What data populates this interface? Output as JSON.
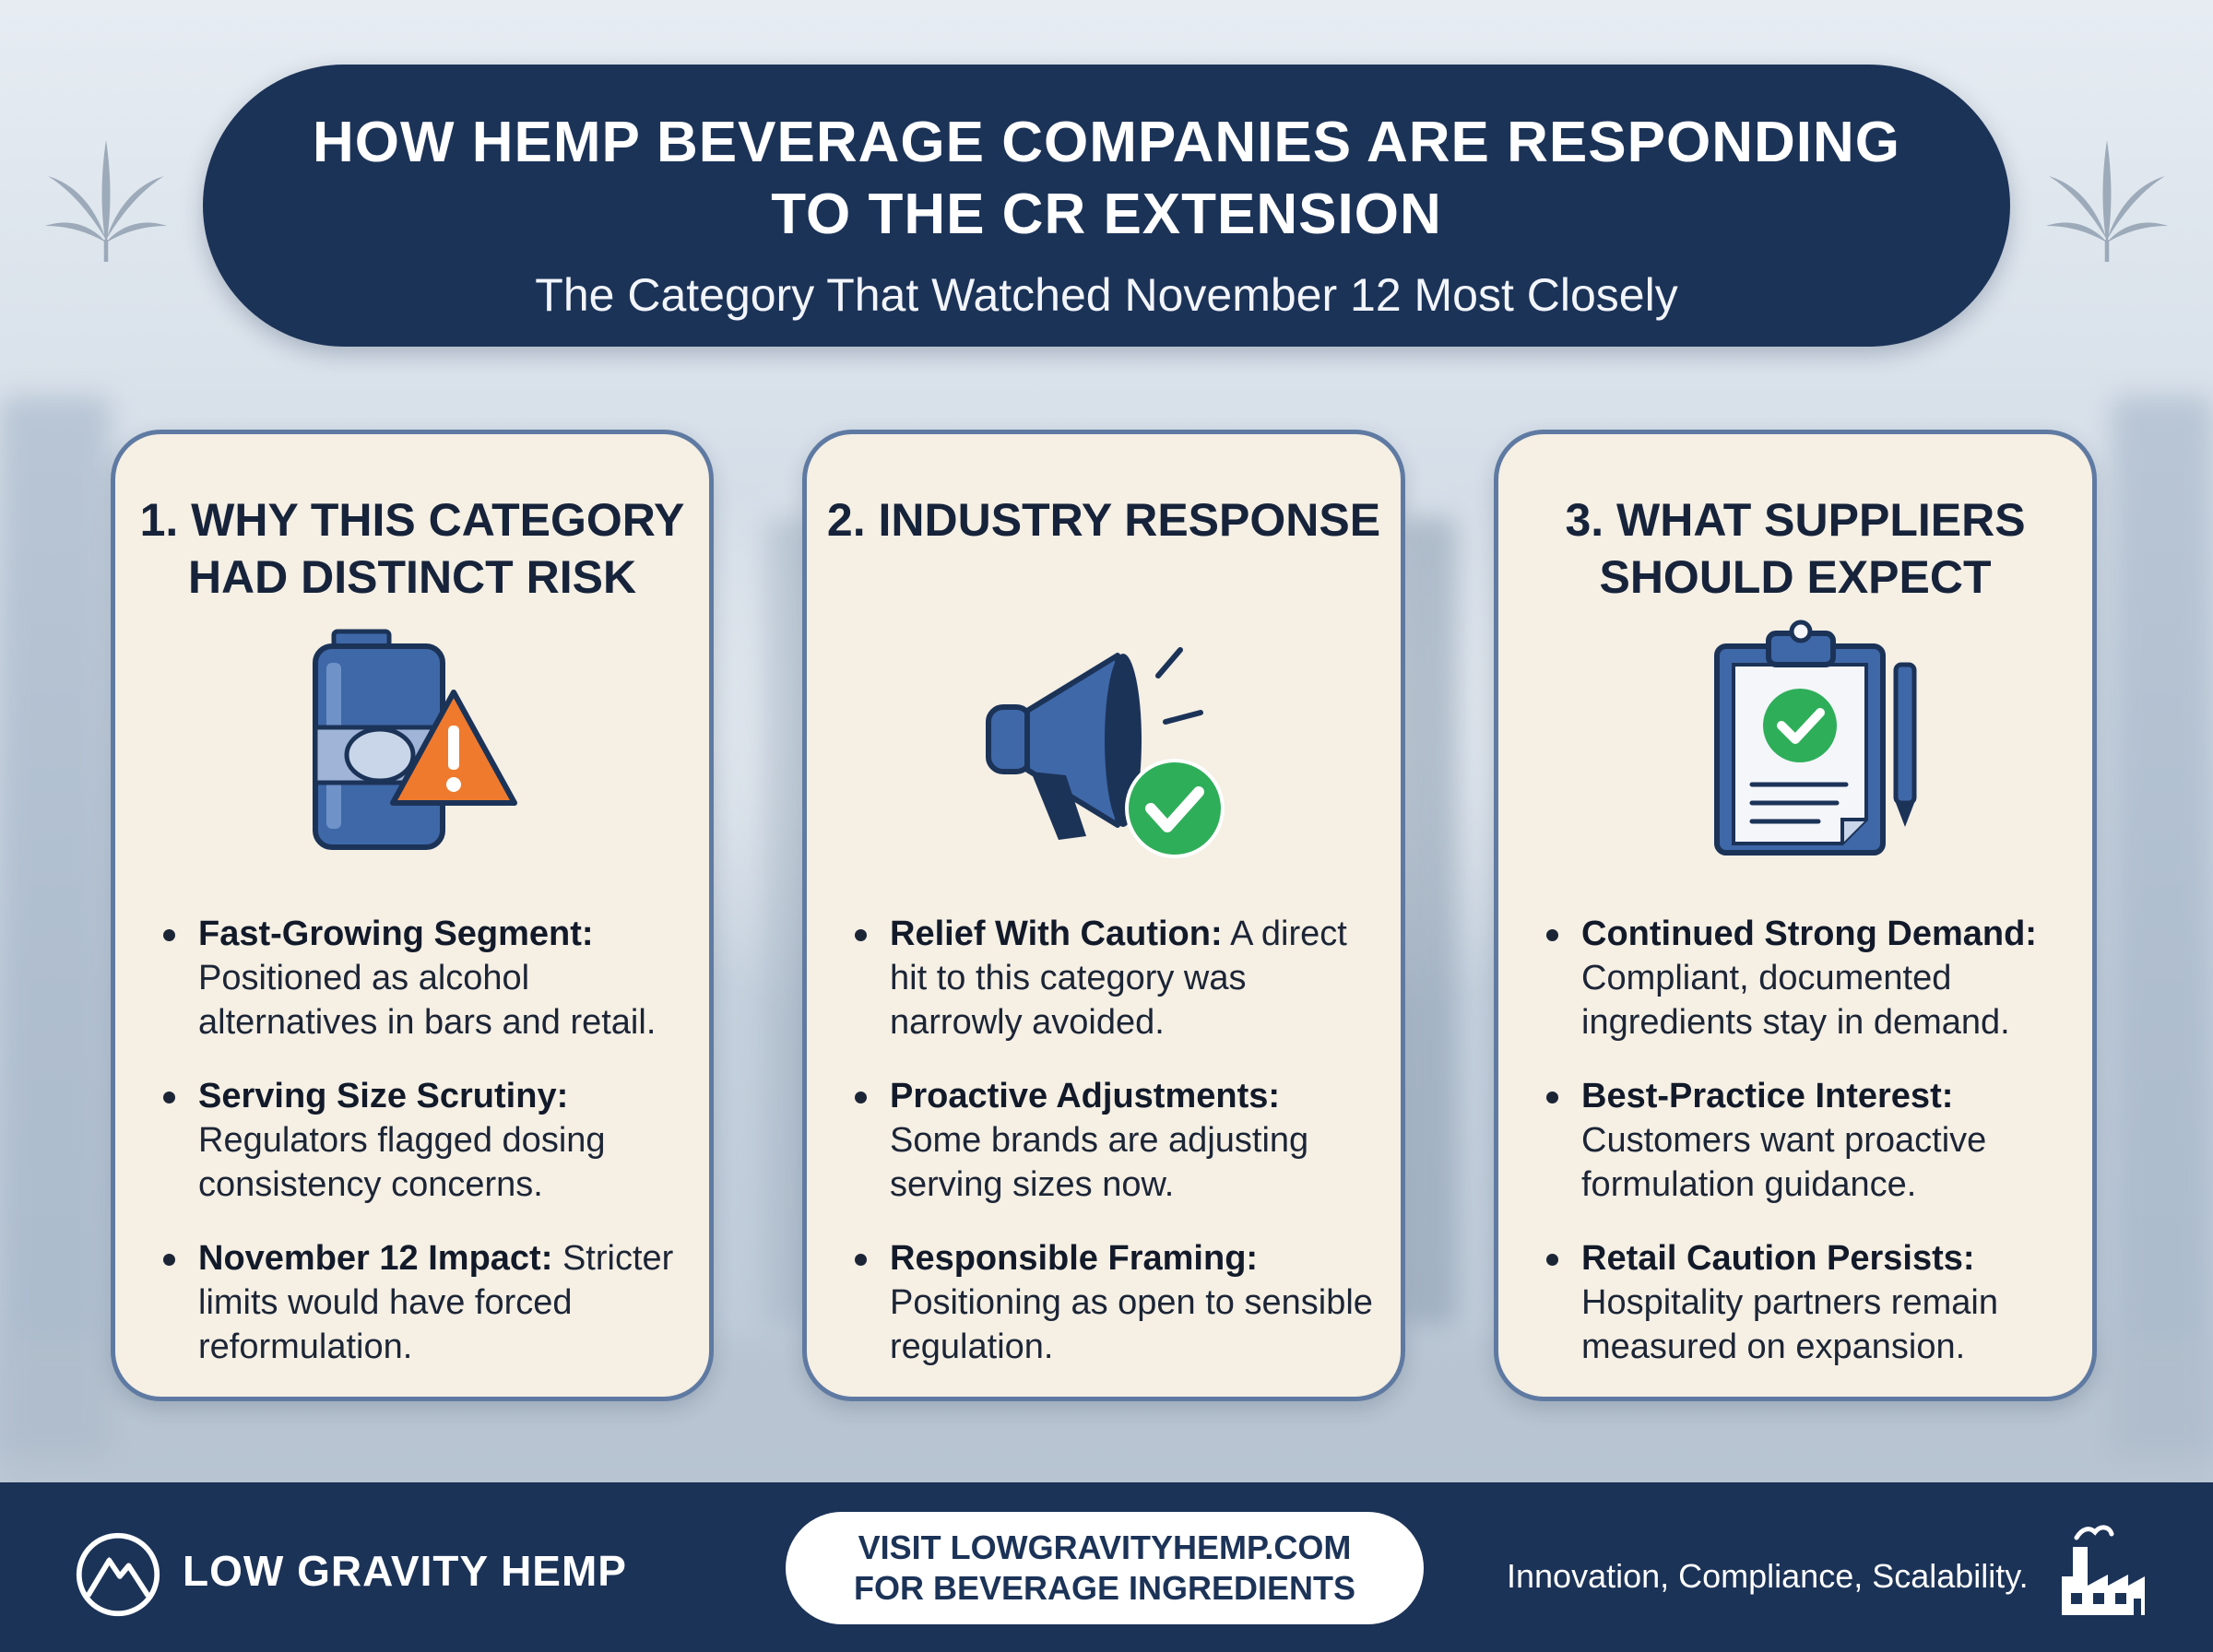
{
  "header": {
    "title": "How Hemp Beverage Companies Are Responding to the CR Extension",
    "subtitle": "The Category That Watched November 12 Most Closely"
  },
  "cards": [
    {
      "title": "1. Why This Category Had Distinct Risk",
      "icon": "beverage-can-warning-icon",
      "items": [
        {
          "label": "Fast-Growing Segment:",
          "text": "Positioned as alcohol alternatives in bars and retail."
        },
        {
          "label": "Serving Size Scrutiny:",
          "text": "Regulators flagged dosing consistency concerns."
        },
        {
          "label": "November 12 Impact:",
          "text": "Stricter limits would have forced reformulation."
        }
      ]
    },
    {
      "title": "2. Industry Response",
      "icon": "megaphone-check-icon",
      "items": [
        {
          "label": "Relief With Caution:",
          "text": "A direct hit to this category was narrowly avoided."
        },
        {
          "label": "Proactive Adjustments:",
          "text": "Some brands are adjusting serving sizes now."
        },
        {
          "label": "Responsible Framing:",
          "text": "Positioning as open to sensible regulation."
        }
      ]
    },
    {
      "title": "3. What Suppliers Should Expect",
      "icon": "clipboard-check-icon",
      "items": [
        {
          "label": "Continued Strong Demand:",
          "text": "Compliant, documented ingredients stay in demand."
        },
        {
          "label": "Best-Practice Interest:",
          "text": "Customers want proactive formulation guidance."
        },
        {
          "label": "Retail Caution Persists:",
          "text": "Hospitality partners remain measured on expansion."
        }
      ]
    }
  ],
  "footer": {
    "brand": "LOW GRAVITY HEMP",
    "cta_line1": "Visit LowGravityHemp.com",
    "cta_line2": "for Beverage Ingredients",
    "tagline": "Innovation, Compliance, Scalability."
  },
  "colors": {
    "navy": "#1c3358",
    "card_bg": "#f5efe4",
    "card_border": "#5f7aa2",
    "icon_blue": "#3f68a8",
    "warning_orange": "#ef7a2e",
    "check_green": "#2fae5a"
  }
}
